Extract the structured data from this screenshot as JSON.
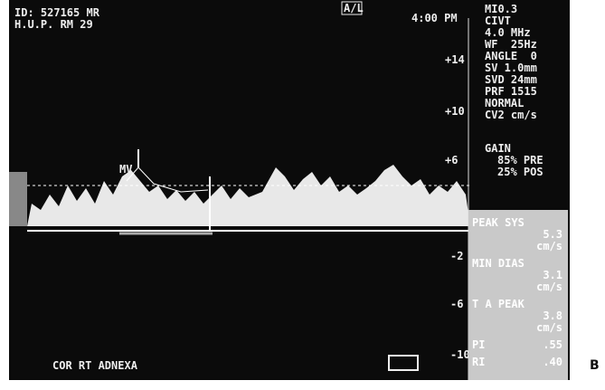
{
  "header": {
    "patient_id": "ID: 527165 MR",
    "location": "H.U.P. RM 29",
    "mode": "A/L",
    "time": "4:00 PM"
  },
  "settings": [
    "MI0.3",
    "CIVT",
    "4.0 MHz",
    "WF  25Hz",
    "ANGLE  0",
    "SV 1.0mm",
    "SVD 24mm",
    "PRF 1515",
    "NORMAL",
    "CV2 cm/s"
  ],
  "gain": {
    "label": "GAIN",
    "pre": "85% PRE",
    "pos": "25% POS"
  },
  "scale": [
    "+14",
    "+10",
    "+6",
    "-2",
    "-6",
    "-10"
  ],
  "marker": "MV",
  "site": "COR RT ADNEXA",
  "measurements": [
    {
      "label": "PEAK SYS",
      "value": "5.3",
      "unit": "cm/s"
    },
    {
      "label": "MIN DIAS",
      "value": "3.1",
      "unit": "cm/s"
    },
    {
      "label": "T A PEAK",
      "value": "3.8",
      "unit": "cm/s"
    },
    {
      "label": "PI",
      "value": ".55"
    },
    {
      "label": "RI",
      "value": ".40"
    }
  ],
  "panel_letter": "B"
}
